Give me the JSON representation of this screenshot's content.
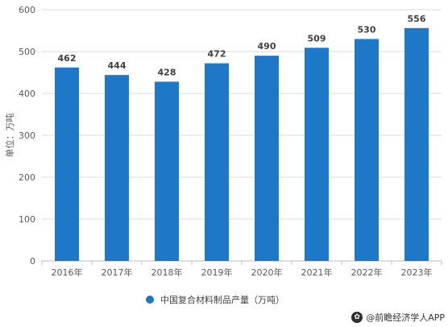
{
  "chart_data": {
    "type": "bar",
    "categories": [
      "2016年",
      "2017年",
      "2018年",
      "2019年",
      "2020年",
      "2021年",
      "2022年",
      "2023年"
    ],
    "series": [
      {
        "name": "中国复合材料制品产量（万吨）",
        "values": [
          462,
          444,
          428,
          472,
          490,
          509,
          530,
          556
        ]
      }
    ],
    "ylabel": "单位：万吨",
    "ylim": [
      0,
      600
    ],
    "yticks": [
      0,
      100,
      200,
      300,
      400,
      500,
      600
    ],
    "grid": true,
    "legend_position": "bottom",
    "bar_color": "#1f77c8",
    "data_labels": true
  },
  "footer": {
    "icon": "paw-icon",
    "text": "@前瞻经济学人APP"
  }
}
